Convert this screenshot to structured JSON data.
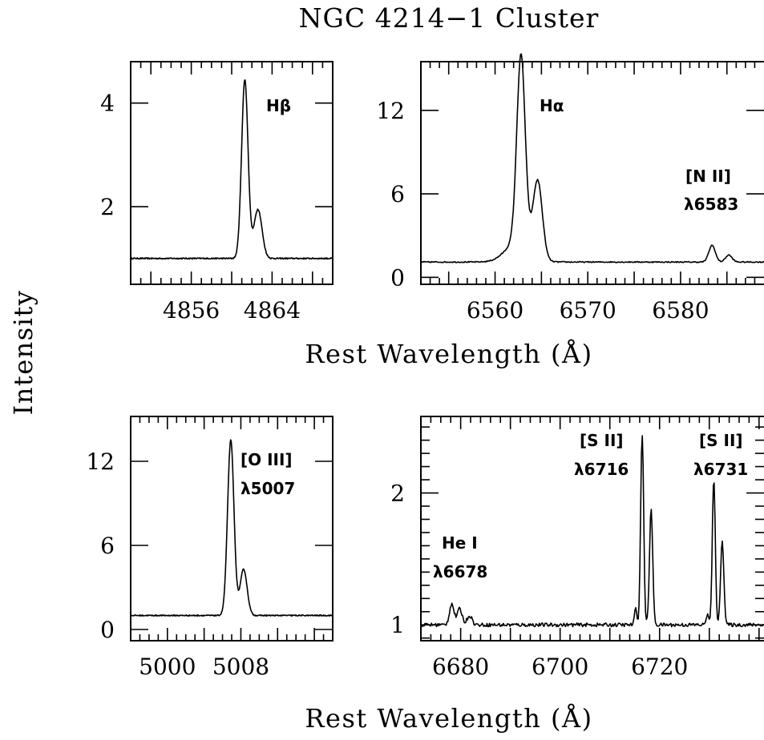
{
  "figure": {
    "title": "NGC 4214−1 Cluster",
    "ylabel": "Intensity",
    "xlabel_top": "Rest Wavelength (Å)",
    "xlabel_bottom": "Rest Wavelength (Å)"
  },
  "chart_data": [
    {
      "type": "line",
      "id": "hbeta",
      "xlim": [
        4850,
        4870
      ],
      "ylim": [
        0.5,
        4.8
      ],
      "xticks": [
        4856,
        4864
      ],
      "yticks": [
        2,
        4
      ],
      "annotation": [
        "Hβ"
      ],
      "continuum": 1.0,
      "lines": [
        {
          "center": 4861.3,
          "amp": 3.45,
          "sigma": 0.32
        },
        {
          "center": 4862.6,
          "amp": 0.95,
          "sigma": 0.4
        }
      ],
      "series": [
        {
          "values": []
        }
      ]
    },
    {
      "type": "line",
      "id": "halpha",
      "xlim": [
        6552,
        6589
      ],
      "ylim": [
        -0.5,
        15.5
      ],
      "xticks": [
        6560,
        6570,
        6580
      ],
      "yticks": [
        0,
        6,
        12
      ],
      "annotation": [
        "Hα",
        "[N II]",
        "λ6583"
      ],
      "continuum": 1.1,
      "lines": [
        {
          "center": 6562.8,
          "amp": 13.5,
          "sigma": 0.45
        },
        {
          "center": 6564.6,
          "amp": 5.5,
          "sigma": 0.5
        },
        {
          "center": 6562.5,
          "amp": 1.5,
          "sigma": 1.3
        },
        {
          "center": 6583.4,
          "amp": 1.2,
          "sigma": 0.35
        },
        {
          "center": 6585.2,
          "amp": 0.5,
          "sigma": 0.35
        }
      ],
      "series": [
        {
          "values": []
        }
      ]
    },
    {
      "type": "line",
      "id": "oiii",
      "xlim": [
        4996,
        5018
      ],
      "ylim": [
        -0.8,
        15.2
      ],
      "xticks": [
        5000,
        5008
      ],
      "yticks": [
        0,
        6,
        12
      ],
      "annotation": [
        "[O III]",
        "λ5007"
      ],
      "continuum": 1.0,
      "lines": [
        {
          "center": 5006.9,
          "amp": 12.5,
          "sigma": 0.35
        },
        {
          "center": 5008.3,
          "amp": 3.3,
          "sigma": 0.38
        }
      ],
      "series": [
        {
          "values": []
        }
      ]
    },
    {
      "type": "line",
      "id": "sii",
      "xlim": [
        6672,
        6741
      ],
      "ylim": [
        0.88,
        2.58
      ],
      "xticks": [
        6680,
        6700,
        6720
      ],
      "yticks": [
        1,
        2
      ],
      "annotation": [
        "He I",
        "λ6678",
        "[S II]",
        "λ6716",
        "[S II]",
        "λ6731"
      ],
      "continuum": 1.0,
      "lines": [
        {
          "center": 6678.2,
          "amp": 0.16,
          "sigma": 0.45
        },
        {
          "center": 6679.8,
          "amp": 0.12,
          "sigma": 0.5
        },
        {
          "center": 6681.8,
          "amp": 0.07,
          "sigma": 0.5
        },
        {
          "center": 6716.5,
          "amp": 1.45,
          "sigma": 0.3
        },
        {
          "center": 6718.3,
          "amp": 0.88,
          "sigma": 0.32
        },
        {
          "center": 6715.2,
          "amp": 0.12,
          "sigma": 0.25
        },
        {
          "center": 6730.9,
          "amp": 1.1,
          "sigma": 0.3
        },
        {
          "center": 6732.6,
          "amp": 0.65,
          "sigma": 0.32
        },
        {
          "center": 6729.6,
          "amp": 0.08,
          "sigma": 0.25
        }
      ],
      "series": [
        {
          "values": []
        }
      ]
    }
  ]
}
